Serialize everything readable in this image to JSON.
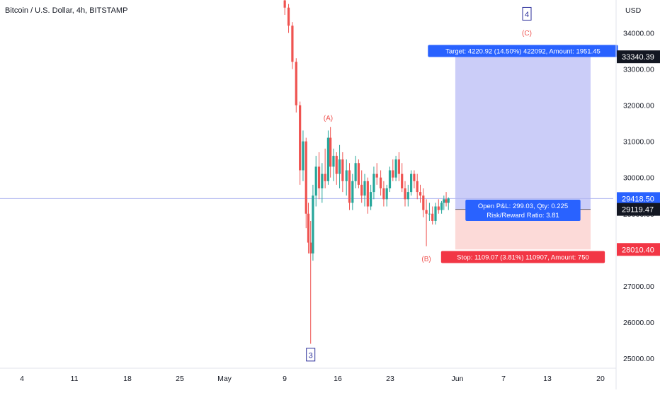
{
  "title": "Bitcoin / U.S. Dollar, 4h, BITSTAMP",
  "currency": "USD",
  "colors": {
    "up": "#26a69a",
    "down": "#ef5350",
    "wave_label": "#ef5350",
    "wave_box": "#2a2e9a",
    "target_zone": "#c5c8f7",
    "stop_zone": "#fcd6d4",
    "target_badge": "#2962ff",
    "stop_badge": "#f23645",
    "entry_line": "#5c5c6b",
    "price_line": "#b0b6f0",
    "tag_dark": "#131722",
    "tag_blue": "#2962ff",
    "tag_red": "#f23645"
  },
  "chart_data": {
    "type": "candlestick",
    "title": "Bitcoin / U.S. Dollar, 4h, BITSTAMP",
    "interval": "4h",
    "ylim": [
      24900,
      34900
    ],
    "y_ticks": [
      25000,
      26000,
      27000,
      28000,
      29000,
      30000,
      31000,
      32000,
      33000,
      34000
    ],
    "x_tick_labels": [
      "4",
      "11",
      "18",
      "25",
      "May",
      "9",
      "16",
      "23",
      "Jun",
      "7",
      "13",
      "20"
    ],
    "grid": false,
    "series": [
      {
        "name": "BTCUSD",
        "columns": [
          "x",
          "open",
          "high",
          "low",
          "close"
        ],
        "x_unit": "days since Apr 30",
        "values": [
          [
            8.2,
            34900,
            34950,
            34500,
            34700
          ],
          [
            8.7,
            34700,
            34800,
            34000,
            34200
          ],
          [
            9.2,
            34200,
            34300,
            33000,
            33200
          ],
          [
            9.7,
            33200,
            33300,
            31800,
            32000
          ],
          [
            10.2,
            32000,
            32100,
            29800,
            30200
          ],
          [
            10.6,
            30200,
            31300,
            29900,
            31000
          ],
          [
            11.0,
            31000,
            31100,
            28600,
            29000
          ],
          [
            11.3,
            29000,
            29300,
            27900,
            28200
          ],
          [
            11.6,
            28200,
            28800,
            25400,
            27900
          ],
          [
            11.9,
            27900,
            29800,
            27700,
            29500
          ],
          [
            12.3,
            29500,
            30600,
            29200,
            30300
          ],
          [
            12.7,
            30300,
            30700,
            29400,
            29700
          ],
          [
            13.1,
            29700,
            30400,
            29300,
            30100
          ],
          [
            13.5,
            30100,
            30800,
            29700,
            29900
          ],
          [
            13.9,
            29900,
            31300,
            29800,
            31100
          ],
          [
            14.2,
            31100,
            31400,
            30000,
            30300
          ],
          [
            14.6,
            30300,
            30800,
            29900,
            30600
          ],
          [
            15.0,
            30600,
            30700,
            29800,
            30100
          ],
          [
            15.4,
            30100,
            30900,
            29700,
            30500
          ],
          [
            15.8,
            30500,
            30700,
            29600,
            29900
          ],
          [
            16.3,
            29900,
            30500,
            29500,
            30200
          ],
          [
            16.7,
            30200,
            30400,
            29100,
            29300
          ],
          [
            17.1,
            29300,
            30100,
            29100,
            29900
          ],
          [
            17.5,
            29900,
            30600,
            29700,
            30400
          ],
          [
            17.9,
            30400,
            30500,
            29700,
            29800
          ],
          [
            18.3,
            29800,
            30200,
            29300,
            29500
          ],
          [
            18.7,
            29500,
            30100,
            29200,
            29900
          ],
          [
            19.1,
            29900,
            30000,
            29000,
            29200
          ],
          [
            19.5,
            29200,
            29800,
            29100,
            29600
          ],
          [
            19.9,
            29600,
            30300,
            29400,
            30100
          ],
          [
            20.3,
            30100,
            30400,
            29800,
            30000
          ],
          [
            20.8,
            30000,
            30200,
            29500,
            29700
          ],
          [
            21.2,
            29700,
            29900,
            29200,
            29400
          ],
          [
            21.6,
            29400,
            29800,
            29200,
            29700
          ],
          [
            22.0,
            29700,
            30300,
            29600,
            30200
          ],
          [
            22.4,
            30200,
            30500,
            29900,
            30000
          ],
          [
            22.8,
            30000,
            30600,
            29900,
            30500
          ],
          [
            23.2,
            30500,
            30700,
            29900,
            30100
          ],
          [
            23.6,
            30100,
            30400,
            29600,
            29700
          ],
          [
            24.0,
            29700,
            29900,
            29200,
            29400
          ],
          [
            24.4,
            29400,
            29800,
            29200,
            29600
          ],
          [
            24.8,
            29600,
            30200,
            29500,
            30100
          ],
          [
            25.2,
            30100,
            30200,
            29700,
            29900
          ],
          [
            25.6,
            29900,
            30100,
            29400,
            29600
          ],
          [
            26.0,
            29600,
            29800,
            29300,
            29500
          ],
          [
            26.4,
            29500,
            29700,
            28900,
            29100
          ],
          [
            26.8,
            29100,
            29400,
            28100,
            29000
          ],
          [
            27.2,
            29000,
            29300,
            28800,
            29000
          ],
          [
            27.6,
            29000,
            29200,
            28700,
            28800
          ],
          [
            28.0,
            28800,
            29300,
            28700,
            29200
          ],
          [
            28.4,
            29200,
            29400,
            29000,
            29100
          ],
          [
            28.8,
            29100,
            29350,
            29000,
            29300
          ],
          [
            29.1,
            29300,
            29500,
            29100,
            29400
          ],
          [
            29.4,
            29400,
            29600,
            29200,
            29300
          ],
          [
            29.7,
            29300,
            29450,
            29100,
            29420
          ]
        ]
      }
    ],
    "wave_labels": [
      {
        "text": "4",
        "boxed": true,
        "x": 40.0,
        "y": 34530
      },
      {
        "text": "(C)",
        "boxed": false,
        "x": 40.0,
        "y": 34000
      },
      {
        "text": "(A)",
        "boxed": false,
        "x": 13.9,
        "y": 31650
      },
      {
        "text": "(B)",
        "boxed": false,
        "x": 26.8,
        "y": 27750
      },
      {
        "text": "3",
        "boxed": true,
        "x": 11.6,
        "y": 25100
      }
    ],
    "position": {
      "x_start": 30.6,
      "x_end": 49.0,
      "entry": 29119.47,
      "target": 33340.39,
      "stop": 28010.4
    }
  },
  "annotations": {
    "target_label": "Target: 4220.92 (14.50%) 422092, Amount: 1951.45",
    "pnl_label": "Open P&L: 299.03, Qty: 0.225",
    "rr_label": "Risk/Reward Ratio: 3.81",
    "stop_label": "Stop: 1109.07 (3.81%) 110907, Amount: 750"
  },
  "price_tags": {
    "target": "33340.39",
    "current_price": "29418.50",
    "countdown": "35:22",
    "entry": "29119.47",
    "stop": "28010.40"
  },
  "price_axis": {
    "ticks": [
      "25000.00",
      "26000.00",
      "27000.00",
      "28000.00",
      "29000.00",
      "30000.00",
      "31000.00",
      "32000.00",
      "33000.00",
      "34000.00"
    ]
  },
  "current_price_value": 29418.5
}
